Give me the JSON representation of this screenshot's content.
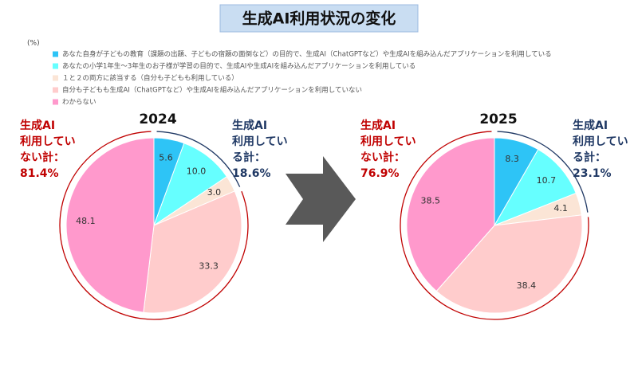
{
  "title": "生成AI利用状況の変化",
  "unit": "(%)",
  "chart_data": [
    {
      "type": "pie",
      "title": "2024",
      "categories": [
        "あなた自身が子どもの教育（課題の出題、子どもの宿題の面倒など）の目的で、生成AI（ChatGPTなど）や生成AIを組み込んだアプリケーションを利用している",
        "あなたの小学1年生～3年生のお子様が学習の目的で、生成AIや生成AIを組み込んだアプリケーションを利用している",
        "１と２の両方に該当する（自分も子どもも利用している）",
        "自分も子どもも生成AI（ChatGPTなど）や生成AIを組み込んだアプリケーションを利用していない",
        "わからない"
      ],
      "colors": [
        "#2ec4f6",
        "#66ffff",
        "#fbe5d6",
        "#ffcccc",
        "#ff99cc"
      ],
      "values": [
        5.6,
        10.0,
        3.0,
        33.3,
        48.1
      ],
      "value_labels": [
        "5.6",
        "10.0",
        "3.0",
        "33.3",
        "48.1"
      ],
      "annotations": [
        {
          "lines": [
            "生成AI",
            "利用してい",
            "ない計：",
            "81.4%"
          ],
          "color": "#c00000",
          "side": "left"
        },
        {
          "lines": [
            "生成AI",
            "利用してい",
            "る計：",
            "18.6%"
          ],
          "color": "#1f3864",
          "side": "right"
        }
      ]
    },
    {
      "type": "pie",
      "title": "2025",
      "values": [
        8.3,
        10.7,
        4.1,
        38.4,
        38.5
      ],
      "value_labels": [
        "8.3",
        "10.7",
        "4.1",
        "38.4",
        "38.5"
      ],
      "annotations": [
        {
          "lines": [
            "生成AI",
            "利用してい",
            "ない計：",
            "76.9%"
          ],
          "color": "#c00000",
          "side": "left"
        },
        {
          "lines": [
            "生成AI",
            "利用してい",
            "る計：",
            "23.1%"
          ],
          "color": "#1f3864",
          "side": "right"
        }
      ]
    }
  ]
}
